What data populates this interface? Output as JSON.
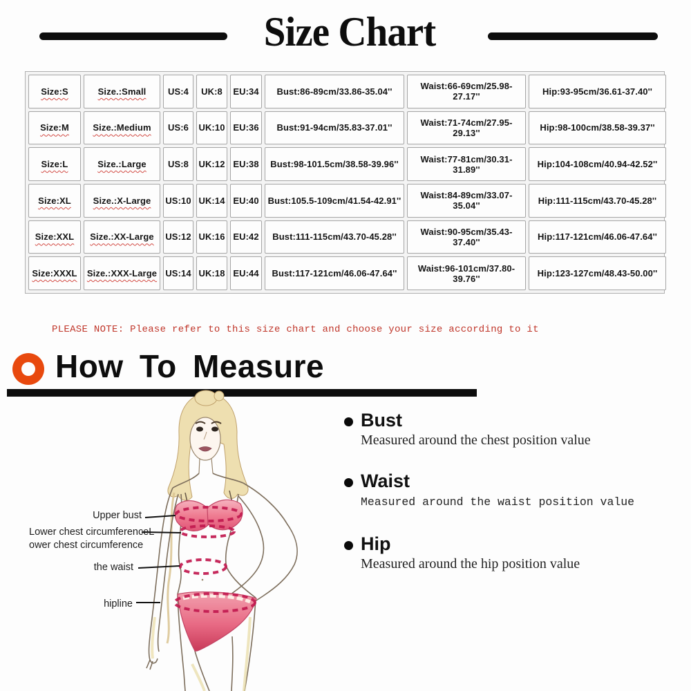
{
  "header": {
    "title": "Size Chart"
  },
  "size_table": {
    "rows": [
      [
        "Size:S",
        "Size.:Small",
        "US:4",
        "UK:8",
        "EU:34",
        "Bust:86-89cm/33.86-35.04''",
        "Waist:66-69cm/25.98-27.17''",
        "Hip:93-95cm/36.61-37.40''"
      ],
      [
        "Size:M",
        "Size.:Medium",
        "US:6",
        "UK:10",
        "EU:36",
        "Bust:91-94cm/35.83-37.01''",
        "Waist:71-74cm/27.95-29.13''",
        "Hip:98-100cm/38.58-39.37''"
      ],
      [
        "Size:L",
        "Size.:Large",
        "US:8",
        "UK:12",
        "EU:38",
        "Bust:98-101.5cm/38.58-39.96''",
        "Waist:77-81cm/30.31-31.89''",
        "Hip:104-108cm/40.94-42.52''"
      ],
      [
        "Size:XL",
        "Size.:X-Large",
        "US:10",
        "UK:14",
        "EU:40",
        "Bust:105.5-109cm/41.54-42.91''",
        "Waist:84-89cm/33.07-35.04''",
        "Hip:111-115cm/43.70-45.28''"
      ],
      [
        "Size:XXL",
        "Size.:XX-Large",
        "US:12",
        "UK:16",
        "EU:42",
        "Bust:111-115cm/43.70-45.28''",
        "Waist:90-95cm/35.43-37.40''",
        "Hip:117-121cm/46.06-47.64''"
      ],
      [
        "Size:XXXL",
        "Size.:XXX-Large",
        "US:14",
        "UK:18",
        "EU:44",
        "Bust:117-121cm/46.06-47.64''",
        "Waist:96-101cm/37.80-39.76''",
        "Hip:123-127cm/48.43-50.00''"
      ]
    ]
  },
  "note": {
    "text": "PLEASE NOTE: Please refer to this size chart and choose your size according to it"
  },
  "how_to_measure": {
    "title": "How To Measure"
  },
  "figure_labels": [
    {
      "text": "Upper bust"
    },
    {
      "text": "Lower chest circumferenceL\nower chest circumference"
    },
    {
      "text": "the waist"
    },
    {
      "text": "hipline"
    }
  ],
  "measure_guide": [
    {
      "label": "Bust",
      "description": "Measured around the chest position value"
    },
    {
      "label": "Waist",
      "description": "Measured around the waist position value"
    },
    {
      "label": "Hip",
      "description": "Measured around the  hip position value"
    }
  ],
  "colors": {
    "accent_orange": "#e8490e",
    "note_red": "#c0362a",
    "measure_dash_pink": "#c21a50",
    "garment_pink": "#ef6b84",
    "hair_blonde": "#eedfb0",
    "table_border": "#a5a5a5",
    "rule_black": "#0d0d0d"
  }
}
